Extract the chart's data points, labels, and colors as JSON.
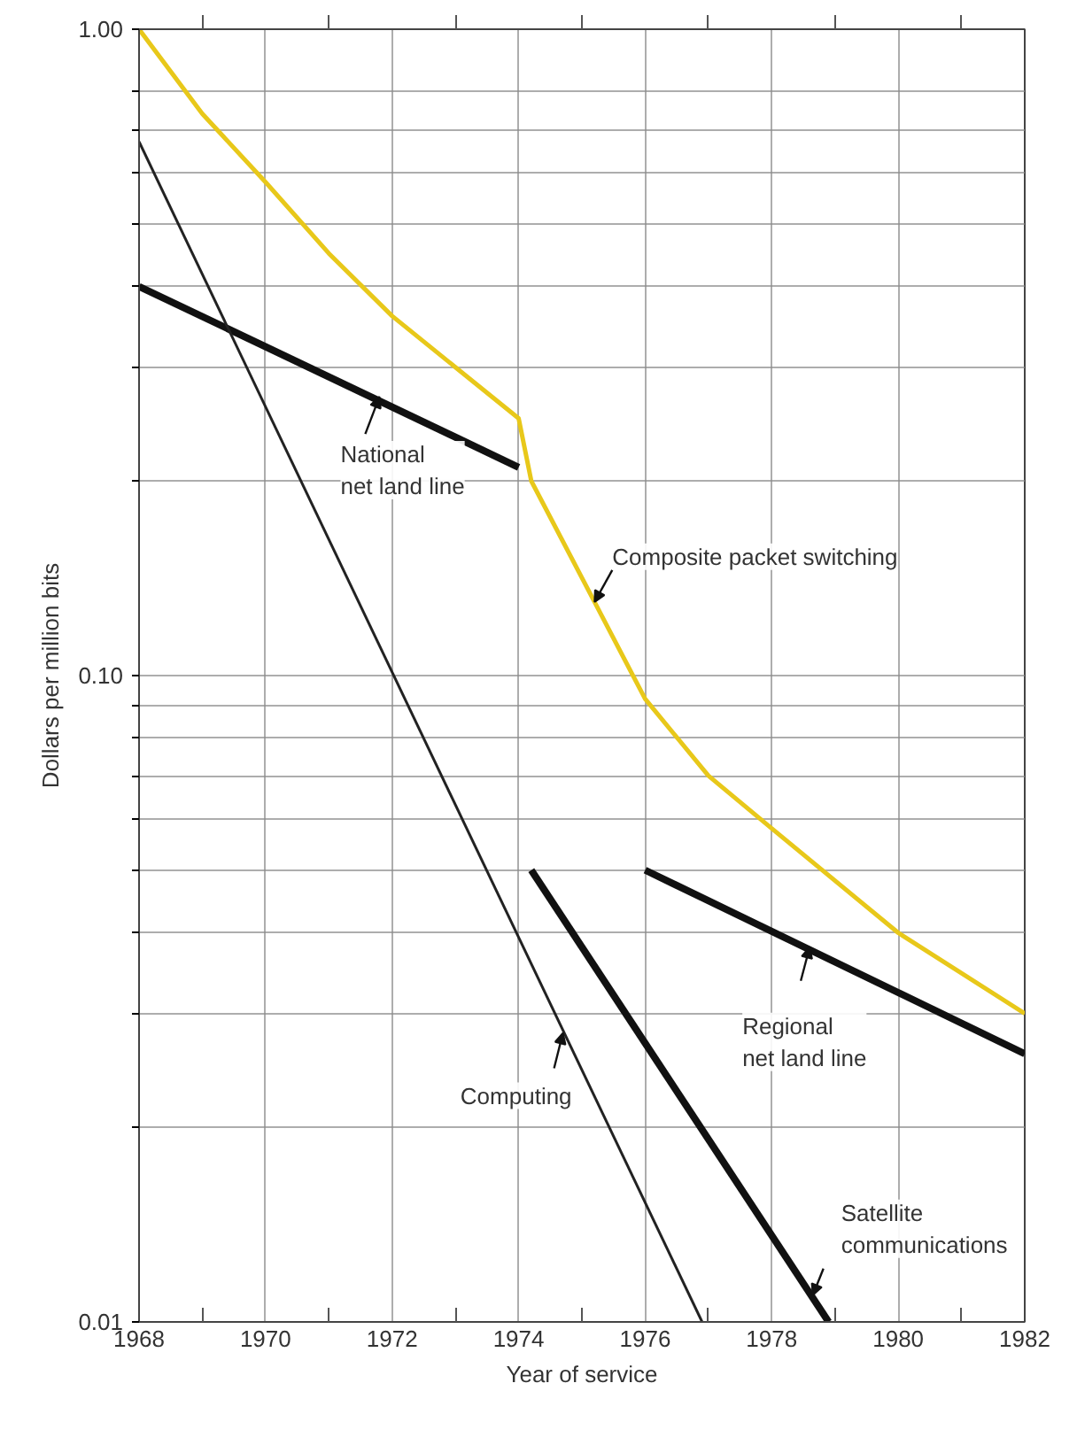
{
  "chart_data": {
    "type": "line",
    "xlabel": "Year of service",
    "ylabel": "Dollars per million bits",
    "log": "y",
    "grid": true,
    "marker": "none",
    "line_style": "solid",
    "xlim": [
      1968,
      1982
    ],
    "xticks": [
      1968,
      1970,
      1972,
      1974,
      1976,
      1978,
      1980,
      1982
    ],
    "ylim": [
      0.01,
      1.0
    ],
    "yticks": [
      {
        "value": 0.01,
        "label": "0.01"
      },
      {
        "value": 0.02,
        "label": null
      },
      {
        "value": 0.03,
        "label": null
      },
      {
        "value": 0.04,
        "label": null
      },
      {
        "value": 0.05,
        "label": null
      },
      {
        "value": 0.06,
        "label": null
      },
      {
        "value": 0.07,
        "label": null
      },
      {
        "value": 0.08,
        "label": null
      },
      {
        "value": 0.09,
        "label": null
      },
      {
        "value": 0.1,
        "label": "0.10"
      },
      {
        "value": 0.2,
        "label": null
      },
      {
        "value": 0.3,
        "label": null
      },
      {
        "value": 0.4,
        "label": null
      },
      {
        "value": 0.5,
        "label": null
      },
      {
        "value": 0.6,
        "label": null
      },
      {
        "value": 0.7,
        "label": null
      },
      {
        "value": 0.8,
        "label": null
      },
      {
        "value": 1.0,
        "label": "1.00"
      }
    ],
    "series": [
      {
        "color": "#e8c81a",
        "x": [
          1968,
          1969,
          1970,
          1971,
          1972,
          1973,
          1974,
          1974.2,
          1975.2,
          1976,
          1977,
          1978,
          1980,
          1982
        ],
        "values": [
          1.0,
          0.74,
          0.58,
          0.45,
          0.36,
          0.3,
          0.25,
          0.2,
          0.13,
          0.092,
          0.07,
          0.058,
          0.04,
          0.03
        ]
      },
      {
        "color": "#111111",
        "x": [
          1968,
          1974
        ],
        "values": [
          0.4,
          0.21
        ]
      },
      {
        "color": "#222222",
        "x": [
          1968,
          1976.9
        ],
        "values": [
          0.67,
          0.01
        ]
      },
      {
        "color": "#111111",
        "x": [
          1974.2,
          1978.9
        ],
        "values": [
          0.05,
          0.01
        ]
      },
      {
        "color": "#111111",
        "x": [
          1976,
          1982
        ],
        "values": [
          0.05,
          0.026
        ]
      }
    ],
    "annotations": [
      {
        "text": "National\nnet land line",
        "x": 1971.8,
        "y": 0.27
      },
      {
        "text": "Composite packet switching",
        "x": 1975.2,
        "y": 0.13
      },
      {
        "text": "Computing",
        "x": 1974.7,
        "y": 0.028
      },
      {
        "text": "Satellite\ncommunications",
        "x": 1978.65,
        "y": 0.011
      },
      {
        "text": "Regional\nnet land line",
        "x": 1978.6,
        "y": 0.038
      }
    ]
  }
}
